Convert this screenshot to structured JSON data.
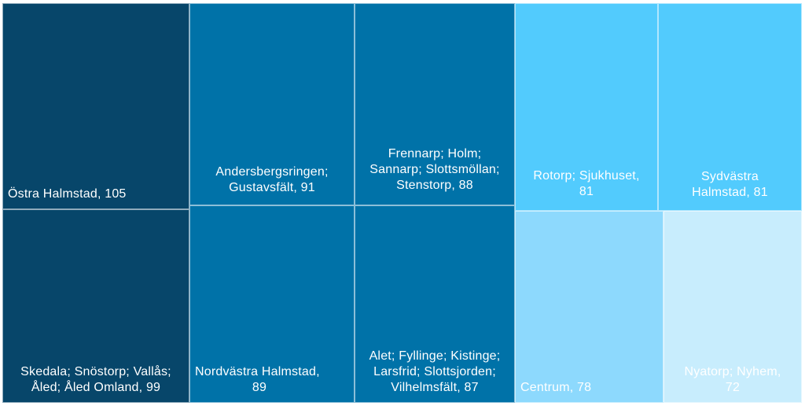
{
  "chart_data": {
    "type": "treemap",
    "title": "",
    "tiles": [
      {
        "label": "Östra Halmstad, 105",
        "name": "Östra Halmstad",
        "value": 105,
        "color": "#07466a"
      },
      {
        "label": "Skedala; Snöstorp; Vallås; Åled; Åled Omland, 99",
        "name": "Skedala; Snöstorp; Vallås; Åled; Åled Omland",
        "value": 99,
        "color": "#07466a"
      },
      {
        "label": "Andersbergsringen; Gustavsfält, 91",
        "name": "Andersbergsringen; Gustavsfält",
        "value": 91,
        "color": "#0072a8"
      },
      {
        "label": "Nordvästra Halmstad, 89",
        "name": "Nordvästra Halmstad",
        "value": 89,
        "color": "#0072a8"
      },
      {
        "label": "Frennarp; Holm; Sannarp; Slottsmöllan; Stenstorp, 88",
        "name": "Frennarp; Holm; Sannarp; Slottsmöllan; Stenstorp",
        "value": 88,
        "color": "#0072a8"
      },
      {
        "label": "Alet; Fyllinge; Kistinge; Larsfrid; Slottsjorden; Vilhelmsfält, 87",
        "name": "Alet; Fyllinge; Kistinge; Larsfrid; Slottsjorden; Vilhelmsfält",
        "value": 87,
        "color": "#0072a8"
      },
      {
        "label": "Rotorp; Sjukhuset, 81",
        "name": "Rotorp; Sjukhuset",
        "value": 81,
        "color": "#52cbfd"
      },
      {
        "label": "Sydvästra Halmstad, 81",
        "name": "Sydvästra Halmstad",
        "value": 81,
        "color": "#52cbfd"
      },
      {
        "label": "Centrum, 78",
        "name": "Centrum",
        "value": 78,
        "color": "#8dd9fd"
      },
      {
        "label": "Nyatorp; Nyhem, 72",
        "name": "Nyatorp; Nyhem",
        "value": 72,
        "color": "#c8edfd"
      }
    ]
  }
}
